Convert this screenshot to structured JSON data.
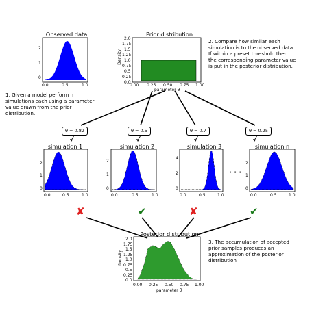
{
  "colors": {
    "simulation_fill": "#0000ff",
    "prior_fill": "#228b22",
    "posterior_fill": "#2e9b2e",
    "reject": "#e02020",
    "accept": "#1a7a1a"
  },
  "observed": {
    "title": "Observed data",
    "x_ticks": [
      "0.0",
      "0.5",
      "1.0"
    ],
    "y_ticks": [
      "0",
      "1",
      "2"
    ]
  },
  "prior": {
    "title": "Prior distribution",
    "xlabel": "parameter θ",
    "ylabel": "Density",
    "x_ticks": [
      "0.00",
      "0.25",
      "0.50",
      "0.75",
      "1.00"
    ],
    "y_ticks": [
      "0.0",
      "0.25",
      "0.5",
      "0.75",
      "1.0",
      "1.25",
      "1.5",
      "1.75",
      "2.0"
    ]
  },
  "steps": {
    "step1": "1. Given a model perform n simulations each using a parameter value drawn from the prior distribution.",
    "step2": "2. Compare how similar each simulation is to the observed data. If within a preset threshold then the corresponding parameter value is put in the posterior distribution.",
    "step3": "3. The accumulation of accepted prior samples produces an approximation of the posterior distribution ."
  },
  "simulations": [
    {
      "label": "θ = 0.82",
      "title": "simulation 1",
      "y_ticks": [
        "0",
        "1",
        "2"
      ],
      "verdict_icon": "cross-icon",
      "verdict_glyph": "✘"
    },
    {
      "label": "θ = 0.5",
      "title": "simulation 2",
      "y_ticks": [
        "0",
        "1",
        "2"
      ],
      "verdict_icon": "check-icon",
      "verdict_glyph": "✔"
    },
    {
      "label": "θ = 0.7",
      "title": "simulation 3",
      "y_ticks": [
        "0",
        "2",
        "4"
      ],
      "verdict_icon": "cross-icon",
      "verdict_glyph": "✘"
    },
    {
      "label": "θ = 0.25",
      "title": "simulation n",
      "y_ticks": [
        "0",
        "1",
        "2"
      ],
      "verdict_icon": "check-icon",
      "verdict_glyph": "✔"
    }
  ],
  "sim_x_ticks": [
    "0.0",
    "0.5",
    "1.0"
  ],
  "ellipsis": "· · ·",
  "posterior": {
    "title": "Posterior distribution",
    "xlabel": "parameter θ",
    "ylabel": "Density",
    "x_ticks": [
      "0.00",
      "0.25",
      "0.50",
      "0.75",
      "1.00"
    ],
    "y_ticks": [
      "0.0",
      "0.25",
      "0.5",
      "0.75",
      "1.0",
      "1.25",
      "1.5",
      "1.75",
      "2.0"
    ]
  }
}
